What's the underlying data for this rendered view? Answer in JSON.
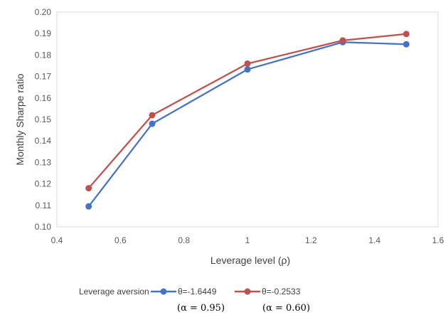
{
  "chart_data": {
    "type": "line",
    "title": "",
    "xlabel": "Leverage level (ρ)",
    "ylabel": "Monthly Sharpe ratio",
    "xlim": [
      0.4,
      1.6
    ],
    "ylim": [
      0.1,
      0.2
    ],
    "x_ticks": [
      "0.4",
      "0.6",
      "0.8",
      "1",
      "1.2",
      "1.4",
      "1.6"
    ],
    "y_ticks": [
      "0.10",
      "0.11",
      "0.12",
      "0.13",
      "0.14",
      "0.15",
      "0.16",
      "0.17",
      "0.18",
      "0.19",
      "0.20"
    ],
    "grid": false,
    "legend_placement": "bottom",
    "legend_title": "Leverage aversion",
    "series": [
      {
        "name": "θ=-1.6449",
        "alpha_note": "(α = 0.95)",
        "color": "#4472C4",
        "x": [
          0.5,
          0.7,
          1.0,
          1.3,
          1.5
        ],
        "values": [
          0.1095,
          0.148,
          0.1733,
          0.186,
          0.185
        ]
      },
      {
        "name": "θ=-0.2533",
        "alpha_note": "(α = 0.60)",
        "color": "#C0504D",
        "x": [
          0.5,
          0.7,
          1.0,
          1.3,
          1.5
        ],
        "values": [
          0.118,
          0.152,
          0.176,
          0.1868,
          0.1898
        ]
      }
    ]
  }
}
